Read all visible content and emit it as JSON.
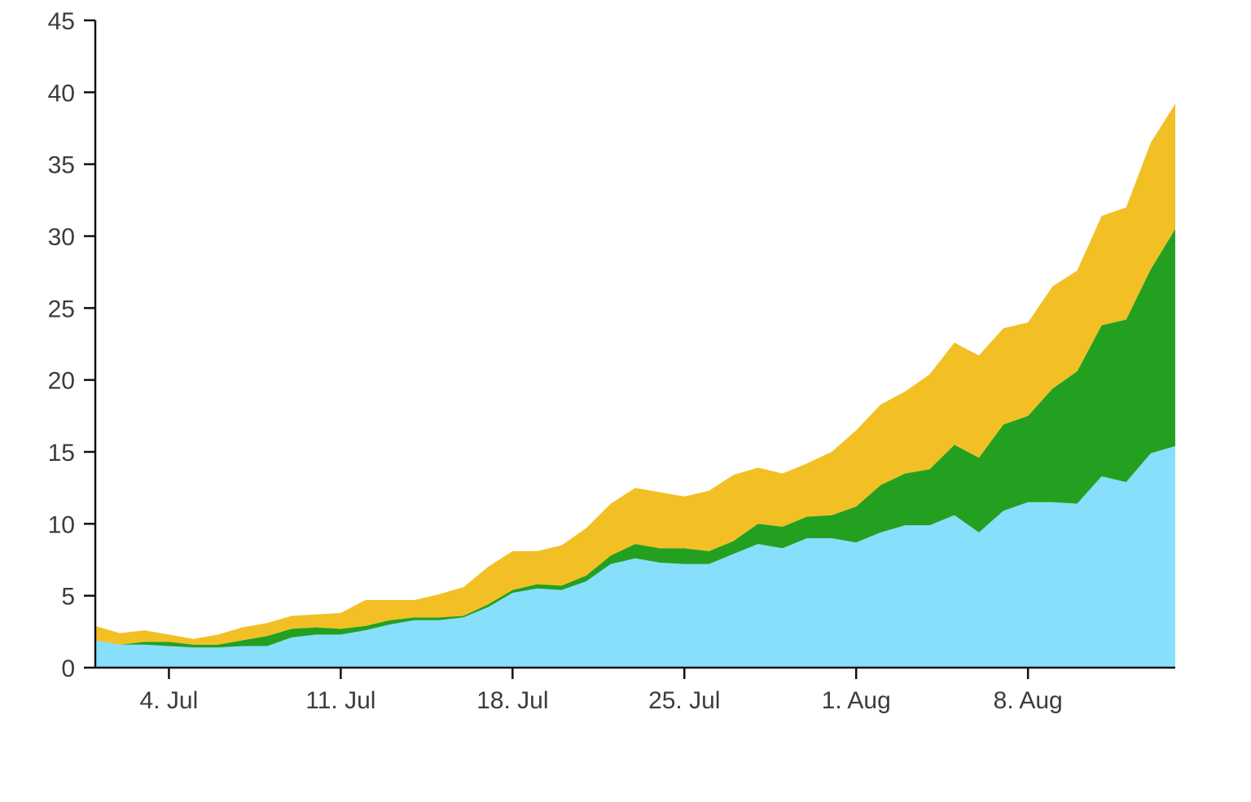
{
  "chart_data": {
    "type": "area",
    "stacked": true,
    "title": "",
    "xlabel": "",
    "ylabel": "",
    "x_start": "2021-07-01",
    "x_end": "2021-08-14",
    "x": [
      "2021-07-01",
      "2021-07-02",
      "2021-07-03",
      "2021-07-04",
      "2021-07-05",
      "2021-07-06",
      "2021-07-07",
      "2021-07-08",
      "2021-07-09",
      "2021-07-10",
      "2021-07-11",
      "2021-07-12",
      "2021-07-13",
      "2021-07-14",
      "2021-07-15",
      "2021-07-16",
      "2021-07-17",
      "2021-07-18",
      "2021-07-19",
      "2021-07-20",
      "2021-07-21",
      "2021-07-22",
      "2021-07-23",
      "2021-07-24",
      "2021-07-25",
      "2021-07-26",
      "2021-07-27",
      "2021-07-28",
      "2021-07-29",
      "2021-07-30",
      "2021-07-31",
      "2021-08-01",
      "2021-08-02",
      "2021-08-03",
      "2021-08-04",
      "2021-08-05",
      "2021-08-06",
      "2021-08-07",
      "2021-08-08",
      "2021-08-09",
      "2021-08-10",
      "2021-08-11",
      "2021-08-12",
      "2021-08-13",
      "2021-08-14"
    ],
    "ylim": [
      0,
      45
    ],
    "yticks": [
      0,
      5,
      10,
      15,
      20,
      25,
      30,
      35,
      40,
      45
    ],
    "xticks": [
      {
        "date": "2021-07-04",
        "label": "4. Jul"
      },
      {
        "date": "2021-07-11",
        "label": "11. Jul"
      },
      {
        "date": "2021-07-18",
        "label": "18. Jul"
      },
      {
        "date": "2021-07-25",
        "label": "25. Jul"
      },
      {
        "date": "2021-08-01",
        "label": "1. Aug"
      },
      {
        "date": "2021-08-08",
        "label": "8. Aug"
      }
    ],
    "grid": false,
    "legend": "none",
    "series": [
      {
        "color": "#87dffc",
        "values": [
          1.9,
          1.6,
          1.6,
          1.5,
          1.4,
          1.4,
          1.5,
          1.5,
          2.1,
          2.3,
          2.3,
          2.6,
          3.0,
          3.3,
          3.3,
          3.5,
          4.2,
          5.2,
          5.5,
          5.4,
          6.0,
          7.2,
          7.6,
          7.3,
          7.2,
          7.2,
          7.9,
          8.6,
          8.3,
          9.0,
          9.0,
          8.7,
          9.4,
          9.9,
          9.9,
          10.6,
          9.4,
          10.9,
          11.5,
          11.5,
          11.4,
          13.3,
          12.9,
          14.9,
          15.4
        ]
      },
      {
        "color": "#24a021",
        "values": [
          0.0,
          0.0,
          0.2,
          0.3,
          0.2,
          0.2,
          0.4,
          0.7,
          0.6,
          0.5,
          0.4,
          0.3,
          0.3,
          0.2,
          0.2,
          0.1,
          0.2,
          0.2,
          0.3,
          0.3,
          0.4,
          0.6,
          1.0,
          1.0,
          1.1,
          0.9,
          0.9,
          1.4,
          1.5,
          1.5,
          1.6,
          2.5,
          3.3,
          3.6,
          3.9,
          4.9,
          5.2,
          6.0,
          6.0,
          7.9,
          9.2,
          10.5,
          11.3,
          12.8,
          15.1
        ]
      },
      {
        "color": "#f2c025",
        "values": [
          1.0,
          0.8,
          0.8,
          0.5,
          0.4,
          0.7,
          0.9,
          0.9,
          0.9,
          0.9,
          1.1,
          1.8,
          1.4,
          1.2,
          1.6,
          2.0,
          2.6,
          2.7,
          2.3,
          2.8,
          3.3,
          3.6,
          3.9,
          3.9,
          3.6,
          4.2,
          4.6,
          3.9,
          3.7,
          3.7,
          4.4,
          5.3,
          5.6,
          5.7,
          6.6,
          7.1,
          7.1,
          6.7,
          6.5,
          7.1,
          7.0,
          7.6,
          7.8,
          8.8,
          8.7
        ]
      }
    ]
  }
}
